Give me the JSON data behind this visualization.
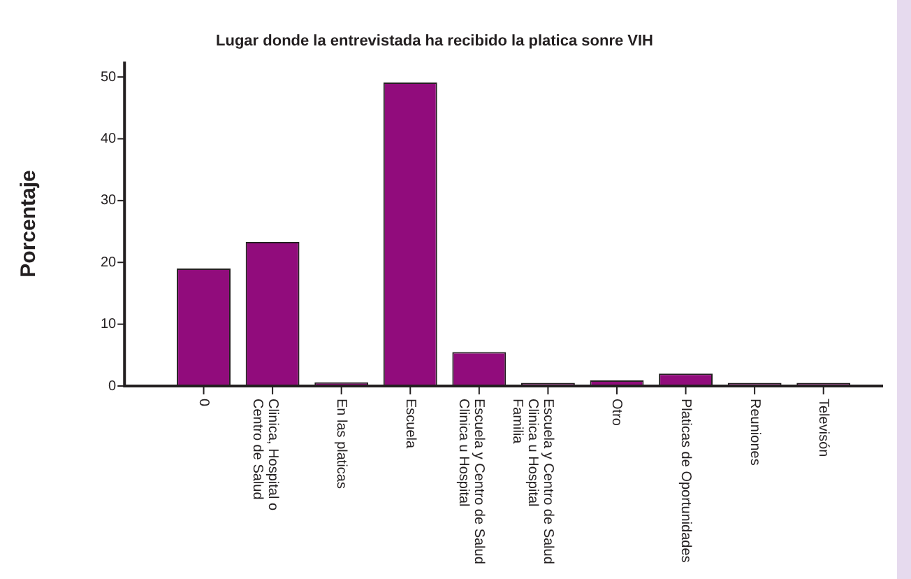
{
  "chart_data": {
    "type": "bar",
    "title": "Lugar donde la entrevistada ha recibido la platica sonre VIH",
    "ylabel": "Porcentaje",
    "categories": [
      "0",
      "Clinica, Hospital o\nCentro de Salud",
      "En las platicas",
      "Escuela",
      "Escuela y Centro de Salud\nClinica u Hospital",
      "Escuela y Centro de Salud\nClinica u Hospital\nFamilia",
      "Otro",
      "Platicas de Oportunidades",
      "Reuniones",
      "Televisón"
    ],
    "values": [
      19.0,
      23.3,
      0.6,
      49.1,
      5.5,
      0.5,
      0.9,
      2.0,
      0.5,
      0.5
    ],
    "color": "#910c7c",
    "ylim": [
      0,
      52.5
    ],
    "yticks": [
      0,
      10,
      20,
      30,
      40,
      50
    ],
    "grid": false,
    "legend": false
  }
}
